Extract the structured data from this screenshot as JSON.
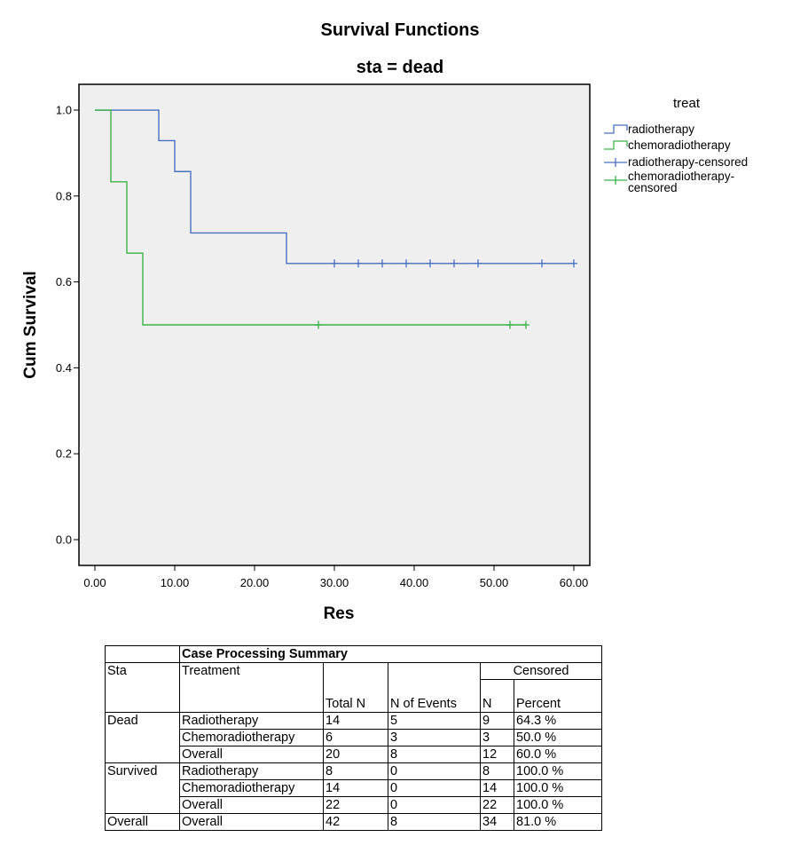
{
  "chart_data": {
    "type": "line",
    "title": "Survival Functions",
    "subtitle": "sta = dead",
    "xlabel": "Res",
    "ylabel": "Cum Survival",
    "xlim": [
      -2,
      62
    ],
    "ylim": [
      -0.06,
      1.06
    ],
    "x_ticks": [
      0,
      10,
      20,
      30,
      40,
      50,
      60
    ],
    "x_tick_labels": [
      "0.00",
      "10.00",
      "20.00",
      "30.00",
      "40.00",
      "50.00",
      "60.00"
    ],
    "y_ticks": [
      0,
      0.2,
      0.4,
      0.6,
      0.8,
      1.0
    ],
    "y_tick_labels": [
      "0.0",
      "0.2",
      "0.4",
      "0.6",
      "0.8",
      "1.0"
    ],
    "background": "#efefef",
    "grid": false,
    "legend_position": "right",
    "legend_title": "treat",
    "legend_entries": [
      "radiotherapy",
      "chemoradiotherapy",
      "radiotherapy-censored",
      "chemoradiotherapy-censored"
    ],
    "series": [
      {
        "name": "radiotherapy",
        "color": "#4a6fbf",
        "x": [
          0,
          8,
          10,
          12,
          24,
          60
        ],
        "y": [
          1.0,
          0.929,
          0.857,
          0.714,
          0.643,
          0.643
        ],
        "censored_x": [
          30,
          33,
          36,
          39,
          42,
          45,
          48,
          56,
          60
        ],
        "censored_y": 0.643
      },
      {
        "name": "chemoradiotherapy",
        "color": "#3cb34a",
        "x": [
          0,
          2,
          4,
          6,
          54
        ],
        "y": [
          1.0,
          0.833,
          0.667,
          0.5,
          0.5
        ],
        "censored_x": [
          28,
          52,
          54
        ],
        "censored_y": 0.5
      }
    ]
  },
  "table": {
    "title": "Case Processing Summary",
    "headers": {
      "sta": "Sta",
      "treatment": "Treatment",
      "total_n": "Total N",
      "n_events": "N of Events",
      "censored": "Censored",
      "n": "N",
      "percent": "Percent"
    },
    "groups": [
      {
        "label": "Dead",
        "rows": [
          [
            "Radiotherapy",
            "14",
            "5",
            "9",
            "64.3 %"
          ],
          [
            "Chemoradiotherapy",
            "6",
            "3",
            "3",
            "50.0 %"
          ],
          [
            "Overall",
            "20",
            "8",
            "12",
            "60.0 %"
          ]
        ]
      },
      {
        "label": "Survived",
        "rows": [
          [
            "Radiotherapy",
            "8",
            "0",
            "8",
            "100.0 %"
          ],
          [
            "Chemoradiotherapy",
            "14",
            "0",
            "14",
            "100.0 %"
          ],
          [
            "Overall",
            "22",
            "0",
            "22",
            "100.0 %"
          ]
        ]
      },
      {
        "label": "Overall",
        "rows": [
          [
            "Overall",
            "42",
            "8",
            "34",
            "81.0 %"
          ]
        ]
      }
    ]
  }
}
